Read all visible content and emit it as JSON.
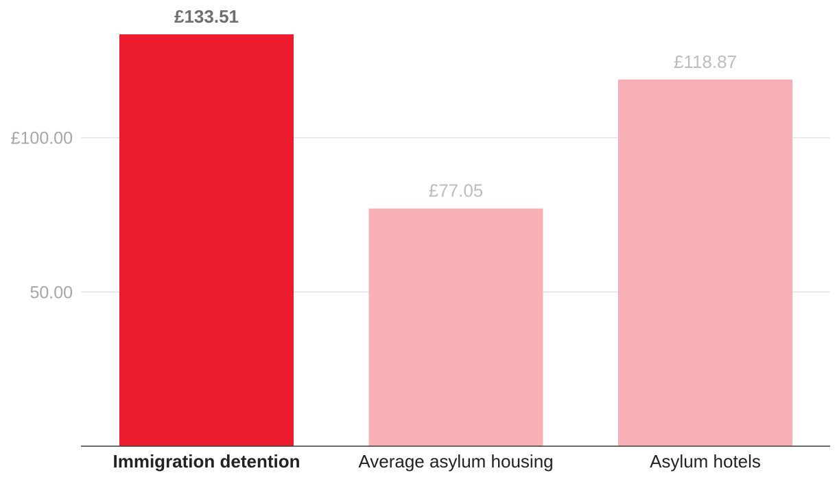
{
  "chart_data": {
    "type": "bar",
    "title": "",
    "xlabel": "",
    "ylabel": "",
    "categories": [
      "Immigration detention",
      "Average asylum housing",
      "Asylum hotels"
    ],
    "values": [
      133.51,
      77.05,
      118.87
    ],
    "value_labels": [
      "£133.51",
      "£77.05",
      "£118.87"
    ],
    "highlight_index": 0,
    "ylim": [
      0,
      133.51
    ],
    "y_ticks": [
      {
        "value": 50,
        "label": "50.00"
      },
      {
        "value": 100,
        "label": "£100.00"
      }
    ],
    "grid": true,
    "colors": {
      "highlight": "#ec1b2e",
      "default": "#f7b0b5"
    }
  }
}
